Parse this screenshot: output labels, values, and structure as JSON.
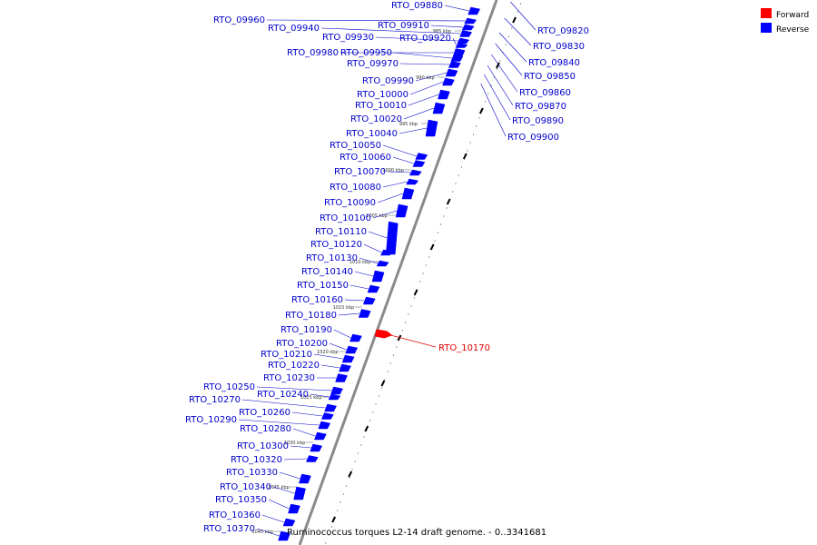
{
  "legend": {
    "items": [
      {
        "label": "Forward",
        "color": "#ff0000"
      },
      {
        "label": "Reverse",
        "color": "#0000ff"
      }
    ]
  },
  "caption": "Ruminococcus torques L2-14 draft genome. - 0..3341681",
  "colors": {
    "forward": "#ff0000",
    "reverse": "#0000ff",
    "backbone": "#8a8a8a",
    "tick": "#000000"
  },
  "scale_ticks": [
    "985 kbp",
    "990 kbp",
    "995 kbp",
    "1000 kbp",
    "1005 kbp",
    "1010 kbp",
    "1015 kbp",
    "1020 kbp",
    "1025 kbp",
    "1030 kbp",
    "1035 kbp",
    "1040 kbp"
  ],
  "genes_reverse_left": [
    "RTO_09880",
    "RTO_09960",
    "RTO_09910",
    "RTO_09940",
    "RTO_09930",
    "RTO_09920",
    "RTO_09980",
    "RTO_09950",
    "RTO_09970",
    "RTO_09990",
    "RTO_10000",
    "RTO_10010",
    "RTO_10020",
    "RTO_10040",
    "RTO_10050",
    "RTO_10060",
    "RTO_10070",
    "RTO_10080",
    "RTO_10090",
    "RTO_10100",
    "RTO_10110",
    "RTO_10120",
    "RTO_10130",
    "RTO_10140",
    "RTO_10150",
    "RTO_10160",
    "RTO_10180",
    "RTO_10190",
    "RTO_10200",
    "RTO_10210",
    "RTO_10220",
    "RTO_10230",
    "RTO_10250",
    "RTO_10240",
    "RTO_10270",
    "RTO_10260",
    "RTO_10290",
    "RTO_10280",
    "RTO_10300",
    "RTO_10320",
    "RTO_10330",
    "RTO_10340",
    "RTO_10350",
    "RTO_10360",
    "RTO_10370"
  ],
  "genes_reverse_right": [
    "RTO_09820",
    "RTO_09830",
    "RTO_09840",
    "RTO_09850",
    "RTO_09860",
    "RTO_09870",
    "RTO_09890",
    "RTO_09900"
  ],
  "genes_forward": [
    "RTO_10170"
  ]
}
